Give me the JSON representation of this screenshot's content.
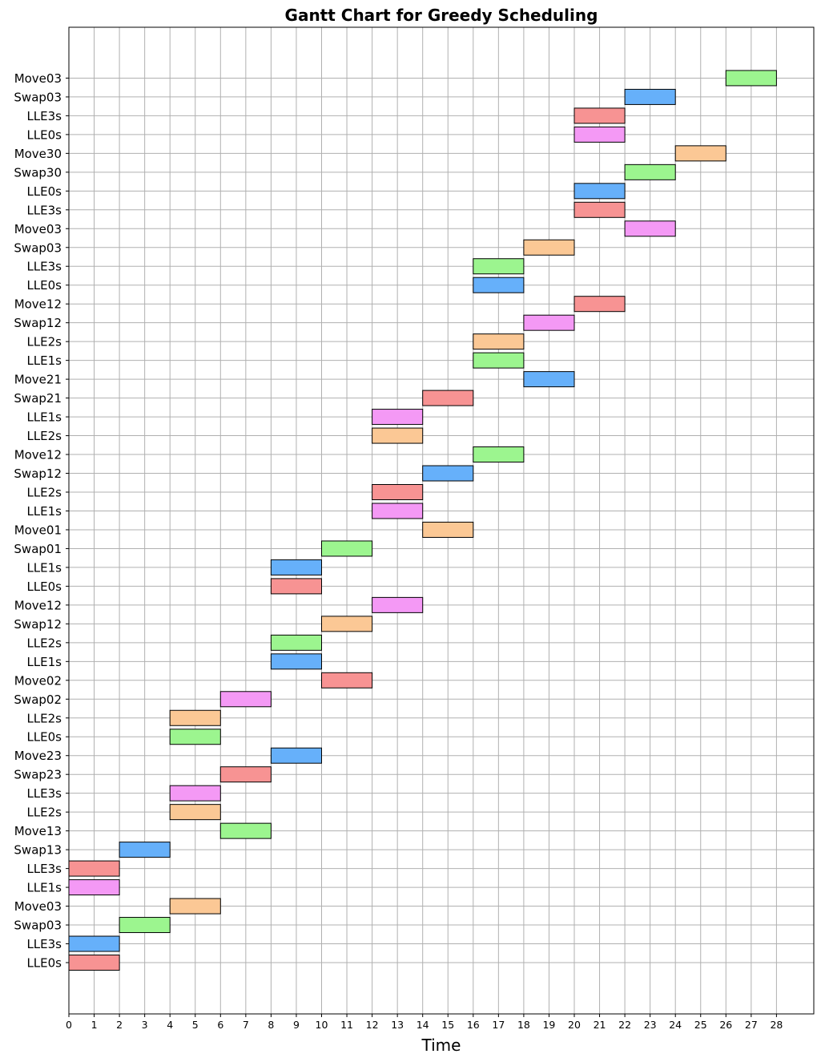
{
  "chart_data": {
    "type": "gantt",
    "title": "Gantt Chart for Greedy Scheduling",
    "xlabel": "Time",
    "ylabel": "",
    "xlim": [
      0,
      29
    ],
    "xticks": [
      0,
      1,
      2,
      3,
      4,
      5,
      6,
      7,
      8,
      9,
      10,
      11,
      12,
      13,
      14,
      15,
      16,
      17,
      18,
      19,
      20,
      21,
      22,
      23,
      24,
      25,
      26,
      27,
      28
    ],
    "grid": true,
    "colors": {
      "red": "#f79393",
      "blue": "#66b0fa",
      "green": "#9cf58f",
      "orange": "#fbc895",
      "pink": "#f499f5"
    },
    "tasks": [
      {
        "label": "LLE0s",
        "start": 0,
        "end": 2,
        "color": "red"
      },
      {
        "label": "LLE3s",
        "start": 0,
        "end": 2,
        "color": "blue"
      },
      {
        "label": "Swap03",
        "start": 2,
        "end": 4,
        "color": "green"
      },
      {
        "label": "Move03",
        "start": 4,
        "end": 6,
        "color": "orange"
      },
      {
        "label": "LLE1s",
        "start": 0,
        "end": 2,
        "color": "pink"
      },
      {
        "label": "LLE3s",
        "start": 0,
        "end": 2,
        "color": "red"
      },
      {
        "label": "Swap13",
        "start": 2,
        "end": 4,
        "color": "blue"
      },
      {
        "label": "Move13",
        "start": 6,
        "end": 8,
        "color": "green"
      },
      {
        "label": "LLE2s",
        "start": 4,
        "end": 6,
        "color": "orange"
      },
      {
        "label": "LLE3s",
        "start": 4,
        "end": 6,
        "color": "pink"
      },
      {
        "label": "Swap23",
        "start": 6,
        "end": 8,
        "color": "red"
      },
      {
        "label": "Move23",
        "start": 8,
        "end": 10,
        "color": "blue"
      },
      {
        "label": "LLE0s",
        "start": 4,
        "end": 6,
        "color": "green"
      },
      {
        "label": "LLE2s",
        "start": 4,
        "end": 6,
        "color": "orange"
      },
      {
        "label": "Swap02",
        "start": 6,
        "end": 8,
        "color": "pink"
      },
      {
        "label": "Move02",
        "start": 10,
        "end": 12,
        "color": "red"
      },
      {
        "label": "LLE1s",
        "start": 8,
        "end": 10,
        "color": "blue"
      },
      {
        "label": "LLE2s",
        "start": 8,
        "end": 10,
        "color": "green"
      },
      {
        "label": "Swap12",
        "start": 10,
        "end": 12,
        "color": "orange"
      },
      {
        "label": "Move12",
        "start": 12,
        "end": 14,
        "color": "pink"
      },
      {
        "label": "LLE0s",
        "start": 8,
        "end": 10,
        "color": "red"
      },
      {
        "label": "LLE1s",
        "start": 8,
        "end": 10,
        "color": "blue"
      },
      {
        "label": "Swap01",
        "start": 10,
        "end": 12,
        "color": "green"
      },
      {
        "label": "Move01",
        "start": 14,
        "end": 16,
        "color": "orange"
      },
      {
        "label": "LLE1s",
        "start": 12,
        "end": 14,
        "color": "pink"
      },
      {
        "label": "LLE2s",
        "start": 12,
        "end": 14,
        "color": "red"
      },
      {
        "label": "Swap12",
        "start": 14,
        "end": 16,
        "color": "blue"
      },
      {
        "label": "Move12",
        "start": 16,
        "end": 18,
        "color": "green"
      },
      {
        "label": "LLE2s",
        "start": 12,
        "end": 14,
        "color": "orange"
      },
      {
        "label": "LLE1s",
        "start": 12,
        "end": 14,
        "color": "pink"
      },
      {
        "label": "Swap21",
        "start": 14,
        "end": 16,
        "color": "red"
      },
      {
        "label": "Move21",
        "start": 18,
        "end": 20,
        "color": "blue"
      },
      {
        "label": "LLE1s",
        "start": 16,
        "end": 18,
        "color": "green"
      },
      {
        "label": "LLE2s",
        "start": 16,
        "end": 18,
        "color": "orange"
      },
      {
        "label": "Swap12",
        "start": 18,
        "end": 20,
        "color": "pink"
      },
      {
        "label": "Move12",
        "start": 20,
        "end": 22,
        "color": "red"
      },
      {
        "label": "LLE0s",
        "start": 16,
        "end": 18,
        "color": "blue"
      },
      {
        "label": "LLE3s",
        "start": 16,
        "end": 18,
        "color": "green"
      },
      {
        "label": "Swap03",
        "start": 18,
        "end": 20,
        "color": "orange"
      },
      {
        "label": "Move03",
        "start": 22,
        "end": 24,
        "color": "pink"
      },
      {
        "label": "LLE3s",
        "start": 20,
        "end": 22,
        "color": "red"
      },
      {
        "label": "LLE0s",
        "start": 20,
        "end": 22,
        "color": "blue"
      },
      {
        "label": "Swap30",
        "start": 22,
        "end": 24,
        "color": "green"
      },
      {
        "label": "Move30",
        "start": 24,
        "end": 26,
        "color": "orange"
      },
      {
        "label": "LLE0s",
        "start": 20,
        "end": 22,
        "color": "pink"
      },
      {
        "label": "LLE3s",
        "start": 20,
        "end": 22,
        "color": "red"
      },
      {
        "label": "Swap03",
        "start": 22,
        "end": 24,
        "color": "blue"
      },
      {
        "label": "Move03",
        "start": 26,
        "end": 28,
        "color": "green"
      }
    ]
  }
}
